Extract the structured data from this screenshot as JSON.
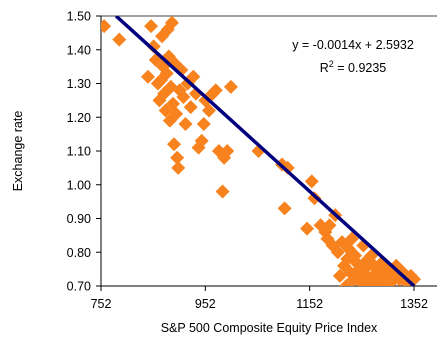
{
  "chart_data": {
    "type": "scatter",
    "title": "",
    "xlabel": "S&P 500 Composite Equity Price Index",
    "ylabel": "Exchange rate",
    "xlim": [
      752,
      1352
    ],
    "ylim": [
      0.7,
      1.5
    ],
    "x_ticks": [
      "752",
      "952",
      "1152",
      "1352"
    ],
    "y_ticks": [
      "0.70",
      "0.80",
      "0.90",
      "1.00",
      "1.10",
      "1.20",
      "1.30",
      "1.40",
      "1.50"
    ],
    "grid": false,
    "legend": "none",
    "marker_color": "#f7821e",
    "line_color": "#00007f",
    "trendline": {
      "slope": -0.0014,
      "intercept": 2.5932
    },
    "equation_label": "y = -0.0014x + 2.5932",
    "r2_prefix": "R",
    "r2_exponent": "2",
    "r2_value": " = 0.9235",
    "series": [
      {
        "points": [
          [
            758,
            1.47
          ],
          [
            787,
            1.43
          ],
          [
            842,
            1.32
          ],
          [
            848,
            1.47
          ],
          [
            853,
            1.41
          ],
          [
            857,
            1.37
          ],
          [
            861,
            1.3
          ],
          [
            864,
            1.25
          ],
          [
            867,
            1.31
          ],
          [
            869,
            1.44
          ],
          [
            871,
            1.35
          ],
          [
            873,
            1.27
          ],
          [
            876,
            1.22
          ],
          [
            878,
            1.33
          ],
          [
            880,
            1.46
          ],
          [
            882,
            1.38
          ],
          [
            884,
            1.19
          ],
          [
            886,
            1.29
          ],
          [
            888,
            1.48
          ],
          [
            890,
            1.24
          ],
          [
            892,
            1.12
          ],
          [
            893,
            1.36
          ],
          [
            896,
            1.21
          ],
          [
            898,
            1.08
          ],
          [
            900,
            1.05
          ],
          [
            903,
            1.28
          ],
          [
            906,
            1.34
          ],
          [
            910,
            1.26
          ],
          [
            914,
            1.18
          ],
          [
            918,
            1.3
          ],
          [
            924,
            1.23
          ],
          [
            929,
            1.32
          ],
          [
            934,
            1.27
          ],
          [
            939,
            1.11
          ],
          [
            945,
            1.13
          ],
          [
            949,
            1.18
          ],
          [
            952,
            1.25
          ],
          [
            959,
            1.22
          ],
          [
            966,
            1.27
          ],
          [
            972,
            1.28
          ],
          [
            978,
            1.1
          ],
          [
            985,
            0.98
          ],
          [
            988,
            1.08
          ],
          [
            994,
            1.1
          ],
          [
            1001,
            1.29
          ],
          [
            1054,
            1.1
          ],
          [
            1099,
            1.06
          ],
          [
            1104,
            0.93
          ],
          [
            1110,
            1.05
          ],
          [
            1147,
            0.87
          ],
          [
            1156,
            1.01
          ],
          [
            1161,
            0.96
          ],
          [
            1173,
            0.88
          ],
          [
            1182,
            0.86
          ],
          [
            1186,
            0.84
          ],
          [
            1190,
            0.88
          ],
          [
            1196,
            0.82
          ],
          [
            1201,
            0.91
          ],
          [
            1206,
            0.8
          ],
          [
            1210,
            0.73
          ],
          [
            1214,
            0.83
          ],
          [
            1218,
            0.76
          ],
          [
            1222,
            0.7
          ],
          [
            1224,
            0.78
          ],
          [
            1227,
            0.81
          ],
          [
            1230,
            0.74
          ],
          [
            1233,
            0.84
          ],
          [
            1236,
            0.72
          ],
          [
            1239,
            0.79
          ],
          [
            1241,
            0.77
          ],
          [
            1244,
            0.73
          ],
          [
            1247,
            0.75
          ],
          [
            1250,
            0.71
          ],
          [
            1253,
            0.74
          ],
          [
            1255,
            0.82
          ],
          [
            1258,
            0.77
          ],
          [
            1261,
            0.72
          ],
          [
            1264,
            0.76
          ],
          [
            1267,
            0.7
          ],
          [
            1270,
            0.79
          ],
          [
            1273,
            0.73
          ],
          [
            1276,
            0.76
          ],
          [
            1280,
            0.71
          ],
          [
            1283,
            0.74
          ],
          [
            1287,
            0.72
          ],
          [
            1291,
            0.77
          ],
          [
            1295,
            0.7
          ],
          [
            1299,
            0.75
          ],
          [
            1303,
            0.73
          ],
          [
            1308,
            0.71
          ],
          [
            1312,
            0.74
          ],
          [
            1318,
            0.76
          ],
          [
            1324,
            0.72
          ],
          [
            1331,
            0.74
          ],
          [
            1338,
            0.71
          ],
          [
            1346,
            0.73
          ],
          [
            1352,
            0.72
          ]
        ]
      }
    ]
  }
}
